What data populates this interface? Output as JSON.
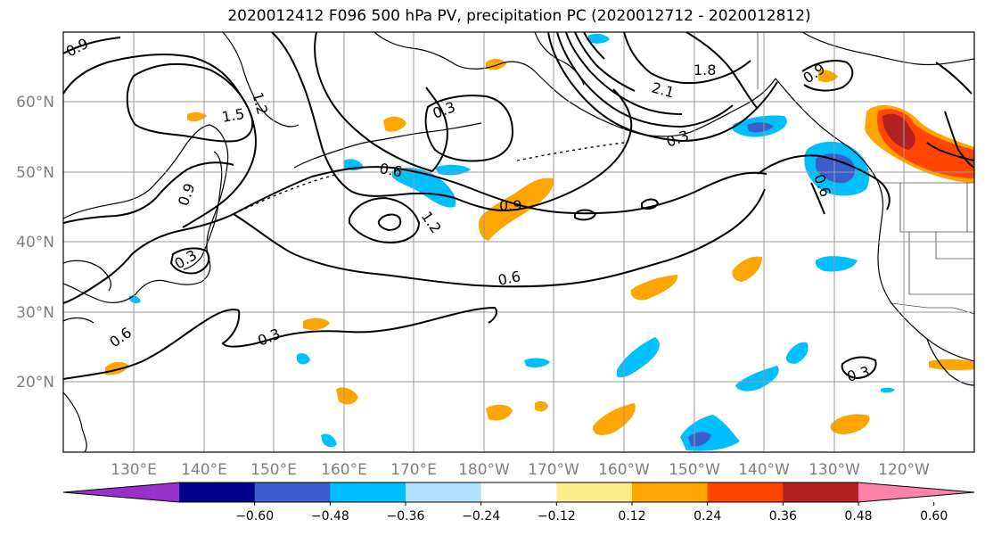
{
  "title": "2020012412 F096 500 hPa PV, precipitation PC (2020012712 - 2020012812)",
  "map": {
    "lat_labels": [
      "60°N",
      "50°N",
      "40°N",
      "30°N",
      "20°N"
    ],
    "lon_labels": [
      "130°E",
      "140°E",
      "150°E",
      "160°E",
      "170°E",
      "180°W",
      "170°W",
      "160°W",
      "150°W",
      "140°W",
      "130°W",
      "120°W"
    ],
    "contour_labels": [
      "0.9",
      "1.5",
      "1.2",
      "0.3",
      "1.8",
      "2.1",
      "0.9",
      "0.6",
      "0.9",
      "1.2",
      "0.6",
      "0.3",
      "0.6",
      "0.3",
      "0.3",
      "0.6",
      "0.3",
      "0.9"
    ],
    "grid": true
  },
  "colorbar": {
    "ticks": [
      "−0.60",
      "−0.48",
      "−0.36",
      "−0.24",
      "−0.12",
      "0.12",
      "0.24",
      "0.36",
      "0.48",
      "0.60"
    ],
    "colors": [
      "#9932cc",
      "#00008b",
      "#3a5fcd",
      "#00bfff",
      "#b0e2ff",
      "#ffffff",
      "#ffec8b",
      "#ffa500",
      "#ff4500",
      "#b22222",
      "#ff82ab"
    ]
  },
  "colors": {
    "pos_light": "#ffec8b",
    "pos_mid": "#ffa500",
    "pos_high": "#ff4500",
    "pos_max": "#b22222",
    "neg_light": "#b0e2ff",
    "neg_mid": "#00bfff",
    "neg_high": "#3a5fcd",
    "neg_max": "#00008b"
  }
}
